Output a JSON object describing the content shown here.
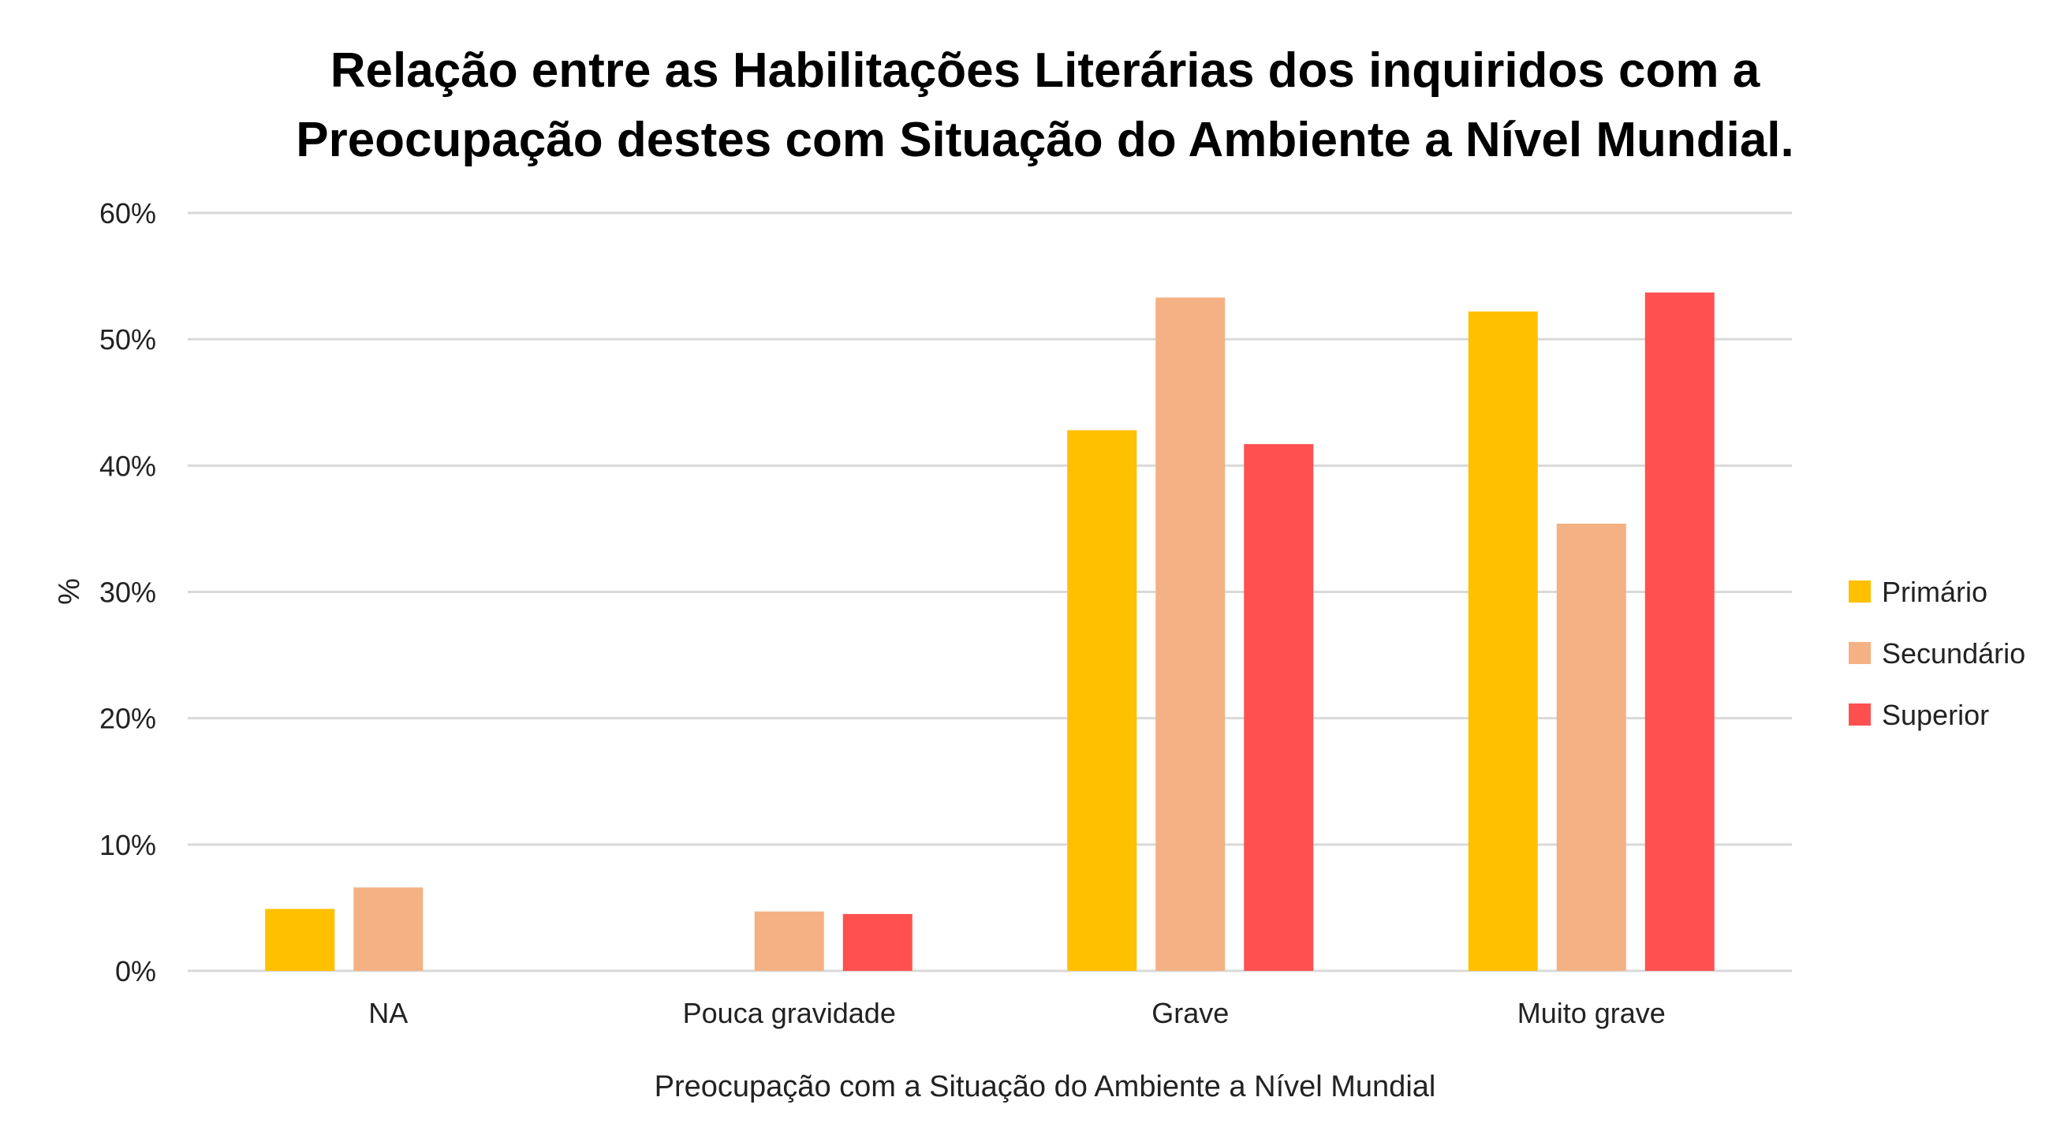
{
  "chart_data": {
    "type": "bar",
    "title_lines": [
      "Relação entre as Habilitações Literárias dos inquiridos com a",
      "Preocupação destes com Situação do Ambiente a Nível Mundial."
    ],
    "xlabel": "Preocupação com a Situação do Ambiente a Nível Mundial",
    "ylabel": "%",
    "categories": [
      "NA",
      "Pouca gravidade",
      "Grave",
      "Muito grave"
    ],
    "series": [
      {
        "name": "Primário",
        "color": "#FFC000",
        "values": [
          4.9,
          0,
          42.8,
          52.2
        ]
      },
      {
        "name": "Secundário",
        "color": "#F4B183",
        "values": [
          6.6,
          4.7,
          53.3,
          35.4
        ]
      },
      {
        "name": "Superior",
        "color": "#FF5050",
        "values": [
          0,
          4.5,
          41.7,
          53.7
        ]
      }
    ],
    "ylim": [
      0,
      60
    ],
    "yticks": [
      "0%",
      "10%",
      "20%",
      "30%",
      "40%",
      "50%",
      "60%"
    ],
    "ytick_values": [
      0,
      10,
      20,
      30,
      40,
      50,
      60
    ],
    "grid": true,
    "gridline_color": "#D9D9D9",
    "legend_position": "right"
  }
}
